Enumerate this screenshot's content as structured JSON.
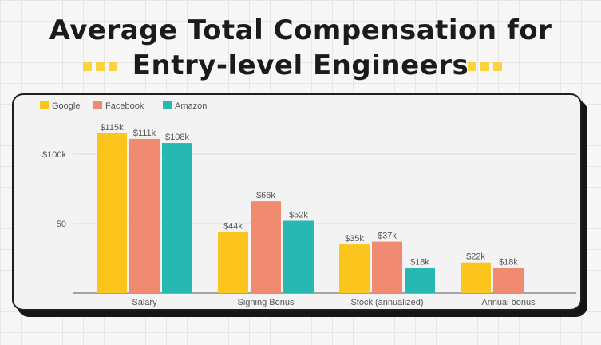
{
  "title": {
    "line1": "Average Total Compensation for",
    "line2": "Entry-level Engineers"
  },
  "colors": {
    "google": "#fbc51d",
    "facebook": "#f08a70",
    "amazon": "#27b8b2",
    "deco": "#fbd240"
  },
  "chart_data": {
    "type": "bar",
    "title": "Average Total Compensation for Entry-level Engineers",
    "categories": [
      "Salary",
      "Signing Bonus",
      "Stock (annualized)",
      "Annual bonus"
    ],
    "series": [
      {
        "name": "Google",
        "color": "#fbc51d",
        "values": [
          115,
          44,
          35,
          22
        ],
        "labels": [
          "$115k",
          "$44k",
          "$35k",
          "$22k"
        ]
      },
      {
        "name": "Facebook",
        "color": "#f08a70",
        "values": [
          111,
          66,
          37,
          18
        ],
        "labels": [
          "$111k",
          "$66k",
          "$37k",
          "$18k"
        ]
      },
      {
        "name": "Amazon",
        "color": "#27b8b2",
        "values": [
          108,
          52,
          18,
          null
        ],
        "labels": [
          "$108k",
          "$52k",
          "$18k",
          ""
        ]
      }
    ],
    "yticks": [
      {
        "value": 50,
        "label": "50"
      },
      {
        "value": 100,
        "label": "$100k"
      }
    ],
    "ylim": [
      0,
      115
    ],
    "legend_position": "top-left",
    "grid": true,
    "xlabel": "",
    "ylabel": ""
  }
}
